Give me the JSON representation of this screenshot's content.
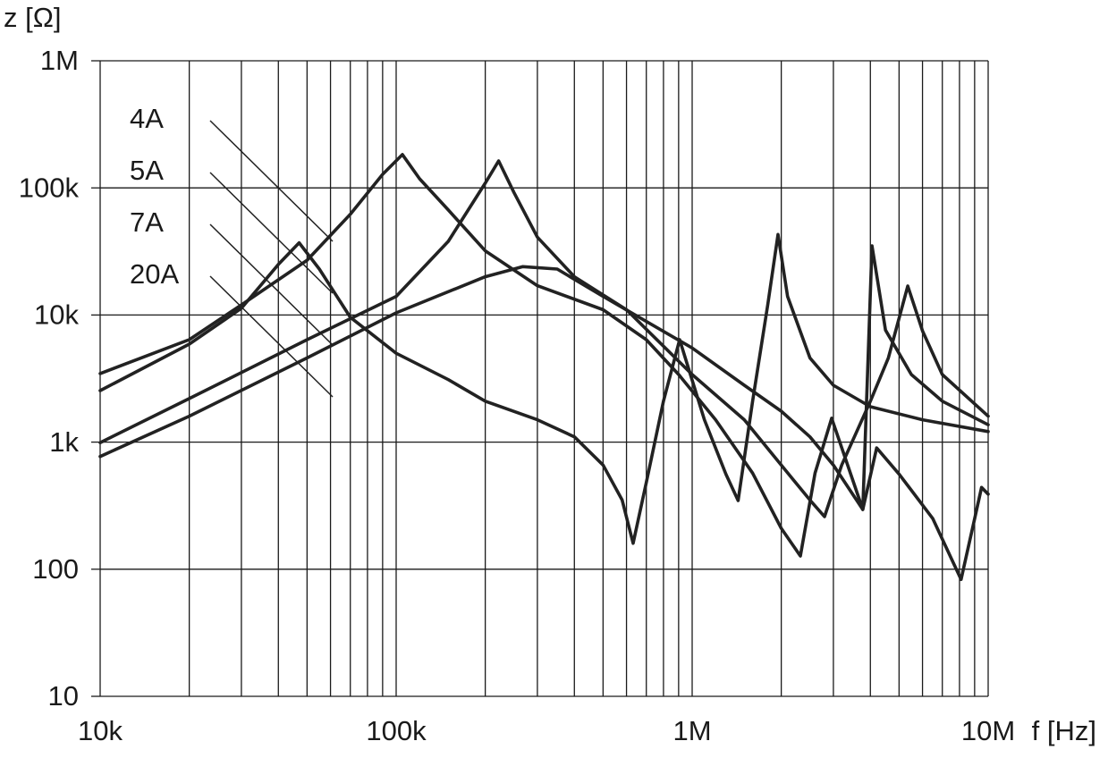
{
  "chart_data": {
    "type": "line",
    "y_label": "z [Ω]",
    "x_label": "f [Hz]",
    "log_x": true,
    "log_y": true,
    "grid": true,
    "xlim": [
      10000,
      10000000
    ],
    "ylim": [
      10,
      1000000
    ],
    "xticks": [
      {
        "value": 10000,
        "label": "10k"
      },
      {
        "value": 100000,
        "label": "100k"
      },
      {
        "value": 1000000,
        "label": "1M"
      },
      {
        "value": 10000000,
        "label": "10M"
      }
    ],
    "xminorticks": [
      20000,
      30000,
      40000,
      50000,
      60000,
      70000,
      80000,
      90000,
      200000,
      300000,
      400000,
      500000,
      600000,
      700000,
      800000,
      900000,
      2000000,
      3000000,
      4000000,
      5000000,
      6000000,
      7000000,
      8000000,
      9000000
    ],
    "yticks": [
      10,
      100,
      {
        "value": 1000,
        "label": "1k"
      },
      {
        "value": 10000,
        "label": "10k"
      },
      {
        "value": 100000,
        "label": "100k"
      },
      {
        "value": 1000000,
        "label": "1M"
      }
    ],
    "series": [
      {
        "name": "4A",
        "color": "#222222",
        "x": [
          10000,
          20000,
          30000,
          50000,
          70000,
          90000,
          105000,
          120000,
          150000,
          200000,
          300000,
          500000,
          700000,
          900000,
          1200000,
          1600000,
          2000000,
          2320000,
          2600000,
          2960000,
          3770000,
          4050000,
          4500000,
          5500000,
          7000000,
          10000000
        ],
        "values": [
          3460,
          6400,
          12000,
          27000,
          62000,
          128000,
          183000,
          118000,
          67000,
          32000,
          17000,
          11000,
          6400,
          3400,
          1500,
          570,
          210,
          127,
          570,
          1540,
          295,
          35000,
          7600,
          3400,
          2100,
          1370
        ]
      },
      {
        "name": "5A",
        "color": "#222222",
        "x": [
          10000,
          20000,
          30000,
          40000,
          47000,
          55000,
          70000,
          100000,
          150000,
          200000,
          300000,
          400000,
          500000,
          580000,
          632000,
          700000,
          800000,
          907000,
          1100000,
          1300000,
          1430000,
          1600000,
          1800000,
          1950000,
          2100000,
          2500000,
          3000000,
          4000000,
          6000000,
          10000000
        ],
        "values": [
          2540,
          5900,
          11300,
          25000,
          37000,
          23000,
          9600,
          5000,
          3100,
          2100,
          1500,
          1100,
          660,
          350,
          160,
          480,
          2100,
          6400,
          1500,
          560,
          347,
          2100,
          12000,
          43000,
          14000,
          4600,
          2800,
          1900,
          1500,
          1210
        ]
      },
      {
        "name": "7A",
        "color": "#222222",
        "x": [
          10000,
          20000,
          50000,
          100000,
          150000,
          200000,
          222000,
          250000,
          300000,
          400000,
          600000,
          1000000,
          1500000,
          2000000,
          2500000,
          2800000,
          3200000,
          4000000,
          4600000,
          5350000,
          6000000,
          7000000,
          10000000
        ],
        "values": [
          990,
          2200,
          6400,
          14000,
          38000,
          109000,
          163000,
          92000,
          41000,
          20000,
          11000,
          3400,
          1500,
          660,
          350,
          259,
          660,
          2100,
          4600,
          16900,
          7500,
          3400,
          1600
        ]
      },
      {
        "name": "20A",
        "color": "#222222",
        "x": [
          10000,
          20000,
          50000,
          100000,
          200000,
          268000,
          350000,
          500000,
          1000000,
          1500000,
          2000000,
          2500000,
          3000000,
          3770000,
          4200000,
          5000000,
          6500000,
          8100000,
          9000000,
          9500000,
          10000000
        ],
        "values": [
          770,
          1600,
          4600,
          10400,
          20000,
          24000,
          23000,
          14000,
          5500,
          2800,
          1750,
          1100,
          660,
          295,
          900,
          560,
          250,
          83,
          250,
          440,
          390
        ]
      }
    ]
  }
}
